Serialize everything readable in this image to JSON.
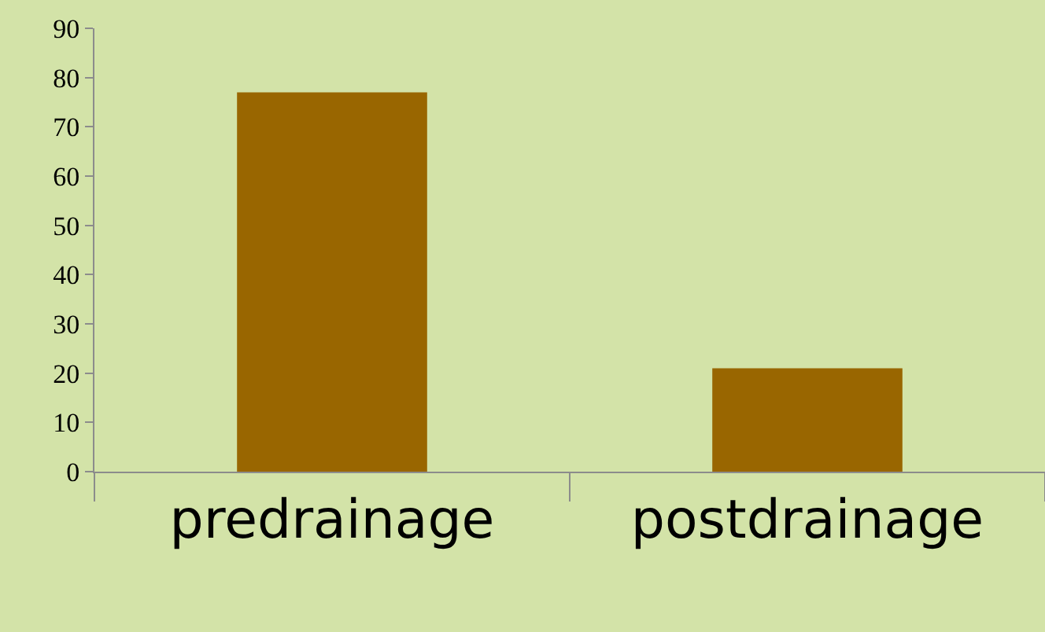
{
  "chart_data": {
    "type": "bar",
    "categories": [
      "predrainage",
      "postdrainage"
    ],
    "values": [
      77,
      21
    ],
    "color": "#996600",
    "ylim": [
      0,
      90
    ],
    "yticks": [
      0,
      10,
      20,
      30,
      40,
      50,
      60,
      70,
      80,
      90
    ],
    "grid": false,
    "legend": false
  }
}
